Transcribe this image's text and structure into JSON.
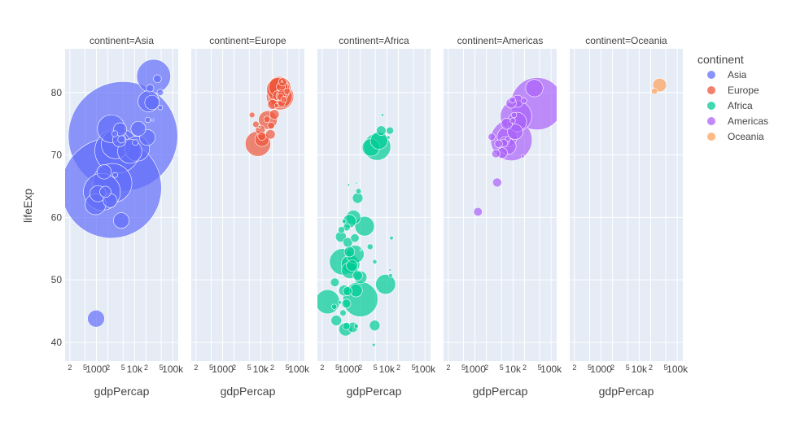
{
  "chart_data": {
    "type": "scatter",
    "subtype": "bubble-faceted",
    "facet_prefix": "continent=",
    "facets": [
      "Asia",
      "Europe",
      "Africa",
      "Americas",
      "Oceania"
    ],
    "xlabel": "gdpPercap",
    "ylabel": "lifeExp",
    "xscale": "log",
    "xlim": [
      150,
      140000
    ],
    "ylim": [
      37,
      87
    ],
    "xticks": [
      {
        "value": 200,
        "label": "2"
      },
      {
        "value": 500,
        "label": "5"
      },
      {
        "value": 1000,
        "label": "1000"
      },
      {
        "value": 2000,
        "label": "2"
      },
      {
        "value": 5000,
        "label": "5"
      },
      {
        "value": 10000,
        "label": "10k"
      },
      {
        "value": 20000,
        "label": "2"
      },
      {
        "value": 50000,
        "label": "5"
      },
      {
        "value": 100000,
        "label": "100k"
      }
    ],
    "yticks": [
      {
        "value": 40,
        "label": "40"
      },
      {
        "value": 50,
        "label": "50"
      },
      {
        "value": 60,
        "label": "60"
      },
      {
        "value": 70,
        "label": "70"
      },
      {
        "value": 80,
        "label": "80"
      }
    ],
    "legend": {
      "title": "continent",
      "placement": "right",
      "items": [
        {
          "name": "Asia",
          "color": "#636efa"
        },
        {
          "name": "Europe",
          "color": "#EF553B"
        },
        {
          "name": "Africa",
          "color": "#00cc96"
        },
        {
          "name": "Americas",
          "color": "#ab63fa"
        },
        {
          "name": "Oceania",
          "color": "#FFA15A"
        }
      ]
    },
    "series": [
      {
        "name": "Asia",
        "points": [
          {
            "x": 974,
            "y": 43.8,
            "pop": 32
          },
          {
            "x": 29800,
            "y": 75.6,
            "pop": 0.7
          },
          {
            "x": 1390,
            "y": 64.1,
            "pop": 150
          },
          {
            "x": 1710,
            "y": 64.1,
            "pop": 14
          },
          {
            "x": 4960,
            "y": 73.0,
            "pop": 1319
          },
          {
            "x": 39700,
            "y": 82.2,
            "pop": 7
          },
          {
            "x": 2450,
            "y": 64.7,
            "pop": 1110
          },
          {
            "x": 3540,
            "y": 70.7,
            "pop": 224
          },
          {
            "x": 11600,
            "y": 71.0,
            "pop": 69
          },
          {
            "x": 4470,
            "y": 59.5,
            "pop": 27
          },
          {
            "x": 25500,
            "y": 80.7,
            "pop": 6.4
          },
          {
            "x": 31700,
            "y": 82.6,
            "pop": 127
          },
          {
            "x": 4520,
            "y": 72.5,
            "pop": 6
          },
          {
            "x": 1590,
            "y": 67.3,
            "pop": 23
          },
          {
            "x": 23300,
            "y": 78.6,
            "pop": 49
          },
          {
            "x": 47300,
            "y": 77.6,
            "pop": 2.5
          },
          {
            "x": 10500,
            "y": 72.0,
            "pop": 4
          },
          {
            "x": 12500,
            "y": 74.2,
            "pop": 24
          },
          {
            "x": 3100,
            "y": 66.8,
            "pop": 2.9
          },
          {
            "x": 944,
            "y": 62.1,
            "pop": 47.8
          },
          {
            "x": 1091,
            "y": 63.8,
            "pop": 28.9
          },
          {
            "x": 22300,
            "y": 75.6,
            "pop": 3.2
          },
          {
            "x": 2606,
            "y": 65.5,
            "pop": 169
          },
          {
            "x": 3190,
            "y": 71.7,
            "pop": 91
          },
          {
            "x": 21650,
            "y": 72.8,
            "pop": 27.6
          },
          {
            "x": 47100,
            "y": 80.0,
            "pop": 4.5
          },
          {
            "x": 3970,
            "y": 72.4,
            "pop": 20
          },
          {
            "x": 4185,
            "y": 74.1,
            "pop": 19.3
          },
          {
            "x": 28700,
            "y": 78.4,
            "pop": 23.2
          },
          {
            "x": 7458,
            "y": 70.6,
            "pop": 65
          },
          {
            "x": 2442,
            "y": 74.2,
            "pop": 85
          },
          {
            "x": 3025,
            "y": 73.4,
            "pop": 4
          },
          {
            "x": 2281,
            "y": 62.7,
            "pop": 22
          }
        ]
      },
      {
        "name": "Europe",
        "points": [
          {
            "x": 5937,
            "y": 76.4,
            "pop": 3.6
          },
          {
            "x": 36126,
            "y": 79.8,
            "pop": 8.2
          },
          {
            "x": 33692,
            "y": 79.4,
            "pop": 10.4
          },
          {
            "x": 7446,
            "y": 74.9,
            "pop": 4.6
          },
          {
            "x": 10681,
            "y": 73.0,
            "pop": 7.3
          },
          {
            "x": 14619,
            "y": 75.7,
            "pop": 4.5
          },
          {
            "x": 22833,
            "y": 76.5,
            "pop": 10.2
          },
          {
            "x": 35278,
            "y": 78.3,
            "pop": 5.5
          },
          {
            "x": 33207,
            "y": 79.3,
            "pop": 5.2
          },
          {
            "x": 30470,
            "y": 80.7,
            "pop": 61
          },
          {
            "x": 32170,
            "y": 79.4,
            "pop": 82
          },
          {
            "x": 27538,
            "y": 79.5,
            "pop": 10.7
          },
          {
            "x": 18009,
            "y": 73.3,
            "pop": 9.9
          },
          {
            "x": 36181,
            "y": 81.8,
            "pop": 0.3
          },
          {
            "x": 40676,
            "y": 78.9,
            "pop": 4.1
          },
          {
            "x": 28570,
            "y": 80.5,
            "pop": 58
          },
          {
            "x": 9254,
            "y": 74.5,
            "pop": 0.7
          },
          {
            "x": 36798,
            "y": 79.8,
            "pop": 16.6
          },
          {
            "x": 49357,
            "y": 80.2,
            "pop": 4.6
          },
          {
            "x": 15390,
            "y": 75.6,
            "pop": 38.5
          },
          {
            "x": 20510,
            "y": 78.1,
            "pop": 10.6
          },
          {
            "x": 10808,
            "y": 72.5,
            "pop": 22.3
          },
          {
            "x": 9787,
            "y": 74.0,
            "pop": 10.2
          },
          {
            "x": 18678,
            "y": 74.7,
            "pop": 5.4
          },
          {
            "x": 25768,
            "y": 77.9,
            "pop": 2
          },
          {
            "x": 28821,
            "y": 80.9,
            "pop": 40.4
          },
          {
            "x": 33860,
            "y": 80.9,
            "pop": 9
          },
          {
            "x": 37506,
            "y": 81.7,
            "pop": 7.6
          },
          {
            "x": 8458,
            "y": 71.8,
            "pop": 71
          },
          {
            "x": 33203,
            "y": 79.4,
            "pop": 60.8
          }
        ]
      },
      {
        "name": "Africa",
        "points": [
          {
            "x": 6223,
            "y": 72.3,
            "pop": 33.3
          },
          {
            "x": 4797,
            "y": 42.7,
            "pop": 12.4
          },
          {
            "x": 1441,
            "y": 56.7,
            "pop": 8.1
          },
          {
            "x": 12570,
            "y": 50.7,
            "pop": 1.6
          },
          {
            "x": 1217,
            "y": 52.3,
            "pop": 14.3
          },
          {
            "x": 430,
            "y": 49.6,
            "pop": 8.4
          },
          {
            "x": 2042,
            "y": 50.4,
            "pop": 17.7
          },
          {
            "x": 706,
            "y": 44.7,
            "pop": 4.4
          },
          {
            "x": 1704,
            "y": 50.7,
            "pop": 10.2
          },
          {
            "x": 986,
            "y": 65.2,
            "pop": 0.7
          },
          {
            "x": 278,
            "y": 46.5,
            "pop": 64.6
          },
          {
            "x": 3633,
            "y": 55.3,
            "pop": 3.8
          },
          {
            "x": 1545,
            "y": 48.3,
            "pop": 18
          },
          {
            "x": 2082,
            "y": 54.8,
            "pop": 0.5
          },
          {
            "x": 5581,
            "y": 71.3,
            "pop": 80.3
          },
          {
            "x": 12154,
            "y": 51.6,
            "pop": 0.6
          },
          {
            "x": 641,
            "y": 58.0,
            "pop": 4.9
          },
          {
            "x": 691,
            "y": 52.9,
            "pop": 76.5
          },
          {
            "x": 13206,
            "y": 56.7,
            "pop": 1.5
          },
          {
            "x": 753,
            "y": 59.4,
            "pop": 1.7
          },
          {
            "x": 1327,
            "y": 60.0,
            "pop": 22.9
          },
          {
            "x": 943,
            "y": 56.0,
            "pop": 9.9
          },
          {
            "x": 579,
            "y": 46.4,
            "pop": 1.5
          },
          {
            "x": 1463,
            "y": 54.1,
            "pop": 35.6
          },
          {
            "x": 1569,
            "y": 42.6,
            "pop": 2
          },
          {
            "x": 415,
            "y": 45.7,
            "pop": 3.2
          },
          {
            "x": 12057,
            "y": 73.9,
            "pop": 6
          },
          {
            "x": 1044,
            "y": 59.4,
            "pop": 19.2
          },
          {
            "x": 759,
            "y": 48.3,
            "pop": 13.3
          },
          {
            "x": 1042,
            "y": 54.5,
            "pop": 12
          },
          {
            "x": 1803,
            "y": 64.2,
            "pop": 3.3
          },
          {
            "x": 10957,
            "y": 72.8,
            "pop": 1.3
          },
          {
            "x": 3820,
            "y": 71.2,
            "pop": 33.8
          },
          {
            "x": 824,
            "y": 42.1,
            "pop": 20
          },
          {
            "x": 4811,
            "y": 52.9,
            "pop": 2.1
          },
          {
            "x": 620,
            "y": 56.9,
            "pop": 12.9
          },
          {
            "x": 2014,
            "y": 46.9,
            "pop": 135
          },
          {
            "x": 7671,
            "y": 76.4,
            "pop": 0.8
          },
          {
            "x": 863,
            "y": 46.2,
            "pop": 8.9
          },
          {
            "x": 1599,
            "y": 65.5,
            "pop": 0.2
          },
          {
            "x": 1712,
            "y": 63.1,
            "pop": 12.3
          },
          {
            "x": 862,
            "y": 42.6,
            "pop": 6.1
          },
          {
            "x": 926,
            "y": 48.2,
            "pop": 9.1
          },
          {
            "x": 9270,
            "y": 49.3,
            "pop": 43.9
          },
          {
            "x": 2602,
            "y": 58.6,
            "pop": 42.3
          },
          {
            "x": 4513,
            "y": 39.6,
            "pop": 1.1
          },
          {
            "x": 1107,
            "y": 52.5,
            "pop": 38.1
          },
          {
            "x": 882,
            "y": 58.4,
            "pop": 5.7
          },
          {
            "x": 7093,
            "y": 73.9,
            "pop": 10.3
          },
          {
            "x": 1056,
            "y": 51.5,
            "pop": 29.2
          },
          {
            "x": 1271,
            "y": 42.4,
            "pop": 11.7
          },
          {
            "x": 470,
            "y": 43.5,
            "pop": 12.3
          }
        ]
      },
      {
        "name": "Americas",
        "points": [
          {
            "x": 12779,
            "y": 75.3,
            "pop": 40.3
          },
          {
            "x": 3822,
            "y": 65.6,
            "pop": 9.1
          },
          {
            "x": 9066,
            "y": 72.4,
            "pop": 190
          },
          {
            "x": 36319,
            "y": 80.7,
            "pop": 33.4
          },
          {
            "x": 13172,
            "y": 78.6,
            "pop": 16.3
          },
          {
            "x": 7007,
            "y": 72.9,
            "pop": 44.2
          },
          {
            "x": 9645,
            "y": 78.8,
            "pop": 4.1
          },
          {
            "x": 8948,
            "y": 78.3,
            "pop": 11.4
          },
          {
            "x": 6025,
            "y": 72.2,
            "pop": 9.3
          },
          {
            "x": 6873,
            "y": 75.0,
            "pop": 13.8
          },
          {
            "x": 5728,
            "y": 71.9,
            "pop": 6.9
          },
          {
            "x": 5186,
            "y": 70.3,
            "pop": 12.6
          },
          {
            "x": 1202,
            "y": 60.9,
            "pop": 8.5
          },
          {
            "x": 3548,
            "y": 70.2,
            "pop": 7.5
          },
          {
            "x": 7321,
            "y": 72.6,
            "pop": 2.8
          },
          {
            "x": 11978,
            "y": 76.2,
            "pop": 108.7
          },
          {
            "x": 2749,
            "y": 72.9,
            "pop": 5.7
          },
          {
            "x": 9809,
            "y": 75.5,
            "pop": 3.2
          },
          {
            "x": 4173,
            "y": 71.8,
            "pop": 6.7
          },
          {
            "x": 7409,
            "y": 71.4,
            "pop": 28.7
          },
          {
            "x": 19329,
            "y": 78.7,
            "pop": 3.9
          },
          {
            "x": 18009,
            "y": 69.8,
            "pop": 1.1
          },
          {
            "x": 42952,
            "y": 78.2,
            "pop": 301
          },
          {
            "x": 10611,
            "y": 76.4,
            "pop": 3.4
          },
          {
            "x": 11416,
            "y": 73.7,
            "pop": 26.1
          }
        ]
      },
      {
        "name": "Oceania",
        "points": [
          {
            "x": 34435,
            "y": 81.2,
            "pop": 20.4
          },
          {
            "x": 25185,
            "y": 80.2,
            "pop": 4.1
          }
        ]
      }
    ]
  }
}
